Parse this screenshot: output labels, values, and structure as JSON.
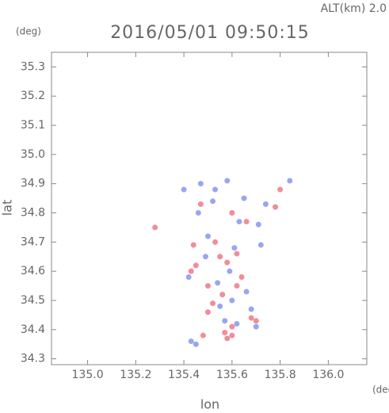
{
  "chart_data": {
    "type": "scatter",
    "title": "2016/05/01 09:50:15",
    "subtitle": "ALT(km) 2.0",
    "y_unit": "(deg)",
    "x_unit": "(deg)",
    "xlabel": "lon",
    "ylabel": "lat",
    "xlim": [
      134.85,
      136.16
    ],
    "ylim": [
      34.28,
      35.35
    ],
    "xticks": [
      {
        "value": 135.0,
        "label": "135.0"
      },
      135.2,
      135.4,
      135.6,
      135.8,
      {
        "value": 136.0,
        "label": "136.0"
      }
    ],
    "yticks": [
      34.3,
      34.4,
      34.5,
      34.6,
      34.7,
      34.8,
      34.9,
      {
        "value": 35.0,
        "label": "35.0"
      },
      35.1,
      35.2,
      35.3
    ],
    "series": [
      {
        "color": "#ee6677",
        "x": [
          135.28,
          135.58,
          135.6,
          135.57,
          135.8,
          135.6,
          135.55,
          135.58,
          135.48,
          135.66,
          135.7,
          135.5,
          135.45,
          135.52,
          135.62,
          135.47,
          135.43,
          135.64,
          135.56,
          135.68,
          135.53,
          135.6,
          135.44,
          135.5,
          135.62,
          135.78
        ],
        "values": [
          34.75,
          34.37,
          34.38,
          34.39,
          34.88,
          34.41,
          34.65,
          34.63,
          34.38,
          34.77,
          34.43,
          34.55,
          34.62,
          34.49,
          34.66,
          34.83,
          34.6,
          34.58,
          34.52,
          34.44,
          34.7,
          34.8,
          34.69,
          34.46,
          34.55,
          34.82
        ]
      },
      {
        "color": "#7788ee",
        "x": [
          135.84,
          135.58,
          135.47,
          135.52,
          135.62,
          135.7,
          135.45,
          135.6,
          135.5,
          135.42,
          135.72,
          135.65,
          135.55,
          135.59,
          135.66,
          135.49,
          135.53,
          135.63,
          135.57,
          135.43,
          135.68,
          135.61,
          135.54,
          135.46,
          135.71,
          135.74,
          135.4
        ],
        "values": [
          34.91,
          34.91,
          34.9,
          34.84,
          34.42,
          34.41,
          34.35,
          34.5,
          34.72,
          34.58,
          34.69,
          34.85,
          34.48,
          34.6,
          34.53,
          34.65,
          34.88,
          34.77,
          34.43,
          34.36,
          34.47,
          34.68,
          34.56,
          34.8,
          34.76,
          34.83,
          34.88
        ]
      }
    ]
  }
}
